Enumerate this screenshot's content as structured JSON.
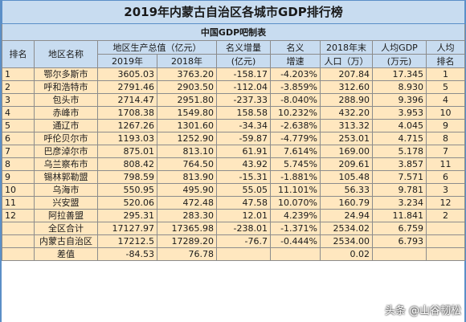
{
  "title": "2019年内蒙古自治区各城市GDP排行榜",
  "subtitle": "中国GDP吧制表",
  "headers": {
    "rank": "排名",
    "region": "地区名称",
    "gdp": "地区生产总值（亿元）",
    "gdp_2019": "2019年",
    "gdp_2018": "2018年",
    "nominal_increase_1": "名义增量",
    "nominal_increase_2": "(亿元)",
    "nominal_1": "名义",
    "nominal_2": "增速",
    "pop_1": "2018年末",
    "pop_2": "人口（万）",
    "per_capita_1": "人均GDP",
    "per_capita_2": "(万元)",
    "per_capita_rank_1": "人均",
    "per_capita_rank_2": "排名"
  },
  "rows": [
    {
      "rank": "1",
      "name": "鄂尔多斯市",
      "gdp2019": "3605.03",
      "gdp2018": "3763.20",
      "increase": "-158.17",
      "growth": "-4.203%",
      "pop": "207.84",
      "per_capita": "17.345",
      "pc_rank": "1"
    },
    {
      "rank": "2",
      "name": "呼和浩特市",
      "gdp2019": "2791.46",
      "gdp2018": "2903.50",
      "increase": "-112.04",
      "growth": "-3.859%",
      "pop": "312.60",
      "per_capita": "8.930",
      "pc_rank": "5"
    },
    {
      "rank": "3",
      "name": "包头市",
      "gdp2019": "2714.47",
      "gdp2018": "2951.80",
      "increase": "-237.33",
      "growth": "-8.040%",
      "pop": "288.90",
      "per_capita": "9.396",
      "pc_rank": "4"
    },
    {
      "rank": "4",
      "name": "赤峰市",
      "gdp2019": "1708.38",
      "gdp2018": "1549.80",
      "increase": "158.58",
      "growth": "10.232%",
      "pop": "432.20",
      "per_capita": "3.953",
      "pc_rank": "10"
    },
    {
      "rank": "5",
      "name": "通辽市",
      "gdp2019": "1267.26",
      "gdp2018": "1301.60",
      "increase": "-34.34",
      "growth": "-2.638%",
      "pop": "313.32",
      "per_capita": "4.045",
      "pc_rank": "9"
    },
    {
      "rank": "6",
      "name": "呼伦贝尔市",
      "gdp2019": "1193.03",
      "gdp2018": "1252.90",
      "increase": "-59.87",
      "growth": "-4.779%",
      "pop": "253.01",
      "per_capita": "4.715",
      "pc_rank": "8"
    },
    {
      "rank": "7",
      "name": "巴彦淖尔市",
      "gdp2019": "875.01",
      "gdp2018": "813.10",
      "increase": "61.91",
      "growth": "7.614%",
      "pop": "169.00",
      "per_capita": "5.178",
      "pc_rank": "7"
    },
    {
      "rank": "8",
      "name": "乌兰察布市",
      "gdp2019": "808.42",
      "gdp2018": "764.50",
      "increase": "43.92",
      "growth": "5.745%",
      "pop": "209.61",
      "per_capita": "3.857",
      "pc_rank": "11"
    },
    {
      "rank": "9",
      "name": "锡林郭勒盟",
      "gdp2019": "798.59",
      "gdp2018": "813.90",
      "increase": "-15.31",
      "growth": "-1.881%",
      "pop": "105.48",
      "per_capita": "7.571",
      "pc_rank": "6"
    },
    {
      "rank": "10",
      "name": "乌海市",
      "gdp2019": "550.95",
      "gdp2018": "495.90",
      "increase": "55.05",
      "growth": "11.101%",
      "pop": "56.33",
      "per_capita": "9.781",
      "pc_rank": "3"
    },
    {
      "rank": "11",
      "name": "兴安盟",
      "gdp2019": "520.06",
      "gdp2018": "472.48",
      "increase": "47.58",
      "growth": "10.070%",
      "pop": "160.79",
      "per_capita": "3.234",
      "pc_rank": "12"
    },
    {
      "rank": "12",
      "name": "阿拉善盟",
      "gdp2019": "295.31",
      "gdp2018": "283.30",
      "increase": "12.01",
      "growth": "4.239%",
      "pop": "24.94",
      "per_capita": "11.841",
      "pc_rank": "2"
    }
  ],
  "totals": [
    {
      "name": "全区合计",
      "gdp2019": "17127.97",
      "gdp2018": "17365.98",
      "increase": "-238.01",
      "growth": "-1.371%",
      "pop": "2534.02",
      "per_capita": "6.759"
    },
    {
      "name": "内蒙古自治区",
      "gdp2019": "17212.5",
      "gdp2018": "17289.20",
      "increase": "-76.7",
      "growth": "-0.444%",
      "pop": "2534.00",
      "per_capita": "6.793"
    },
    {
      "name": "差值",
      "gdp2019": "-84.53",
      "gdp2018": "76.78",
      "increase": "",
      "growth": "",
      "pop": "0.02",
      "per_capita": ""
    }
  ],
  "watermark": "头条 @山谷韧松"
}
